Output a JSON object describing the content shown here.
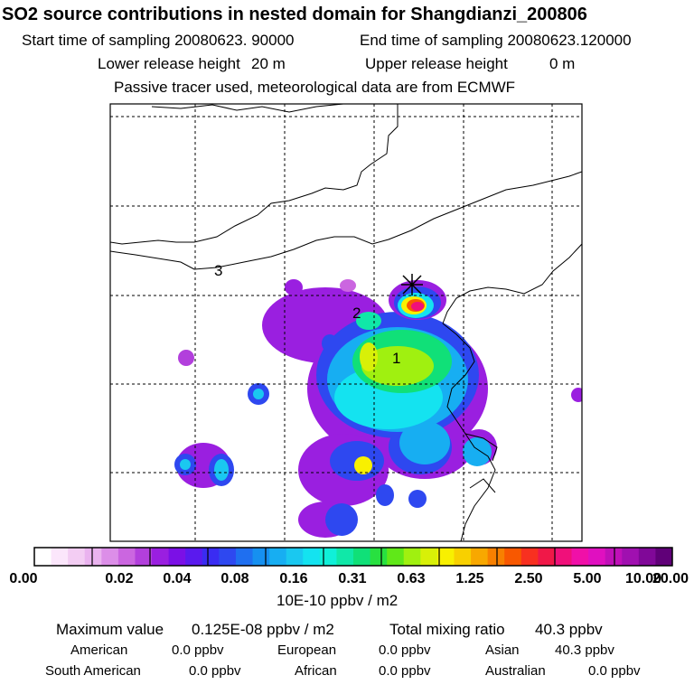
{
  "header": {
    "title": "SO2 source contributions in nested domain for Shangdianzi_200806",
    "start_label": "Start time of sampling 20080623. 90000",
    "end_label": "End time of sampling 20080623.120000",
    "lower_label": "Lower release height",
    "lower_value": "20 m",
    "upper_label": "Upper release height",
    "upper_value": "0 m",
    "note": "Passive tracer used, meteorological data are from ECMWF"
  },
  "map": {
    "region_labels": [
      "1",
      "2",
      "3"
    ],
    "station_marker": "star-cross-icon",
    "grid_lines": "dashed"
  },
  "colorbar": {
    "ticks": [
      "0.00",
      "0.02",
      "0.04",
      "0.08",
      "0.16",
      "0.31",
      "0.63",
      "1.25",
      "2.50",
      "5.00",
      "10.00",
      "20.00"
    ],
    "unit": "10E-10 ppbv / m2",
    "colors": [
      "#ffffff",
      "#fbe6fb",
      "#f3cdf3",
      "#eab3ef",
      "#dc8ee8",
      "#cb66e0",
      "#b23fdc",
      "#9a1fe0",
      "#7b10e6",
      "#5a1aee",
      "#3a2cf2",
      "#2e48f0",
      "#1f6ff0",
      "#1690f0",
      "#17aef2",
      "#1ac8f0",
      "#14e3f0",
      "#10f0d8",
      "#10e8a8",
      "#10e078",
      "#28e040",
      "#60e818",
      "#a0f010",
      "#d8f008",
      "#f8f000",
      "#f8d000",
      "#f8a800",
      "#f88000",
      "#f85800",
      "#f83020",
      "#f01848",
      "#f0107a",
      "#f010a8",
      "#e010c0",
      "#c010b8",
      "#a010b0",
      "#800898",
      "#600078"
    ]
  },
  "summary": {
    "max_label": "Maximum value",
    "max_value": "0.125E-08 ppbv / m2",
    "total_label": "Total mixing ratio",
    "total_value": "40.3 ppbv",
    "regions": [
      {
        "name": "American",
        "value": "0.0 ppbv"
      },
      {
        "name": "European",
        "value": "0.0 ppbv"
      },
      {
        "name": "Asian",
        "value": "40.3 ppbv"
      },
      {
        "name": "South American",
        "value": "0.0 ppbv"
      },
      {
        "name": "African",
        "value": "0.0 ppbv"
      },
      {
        "name": "Australian",
        "value": "0.0 ppbv"
      }
    ]
  }
}
